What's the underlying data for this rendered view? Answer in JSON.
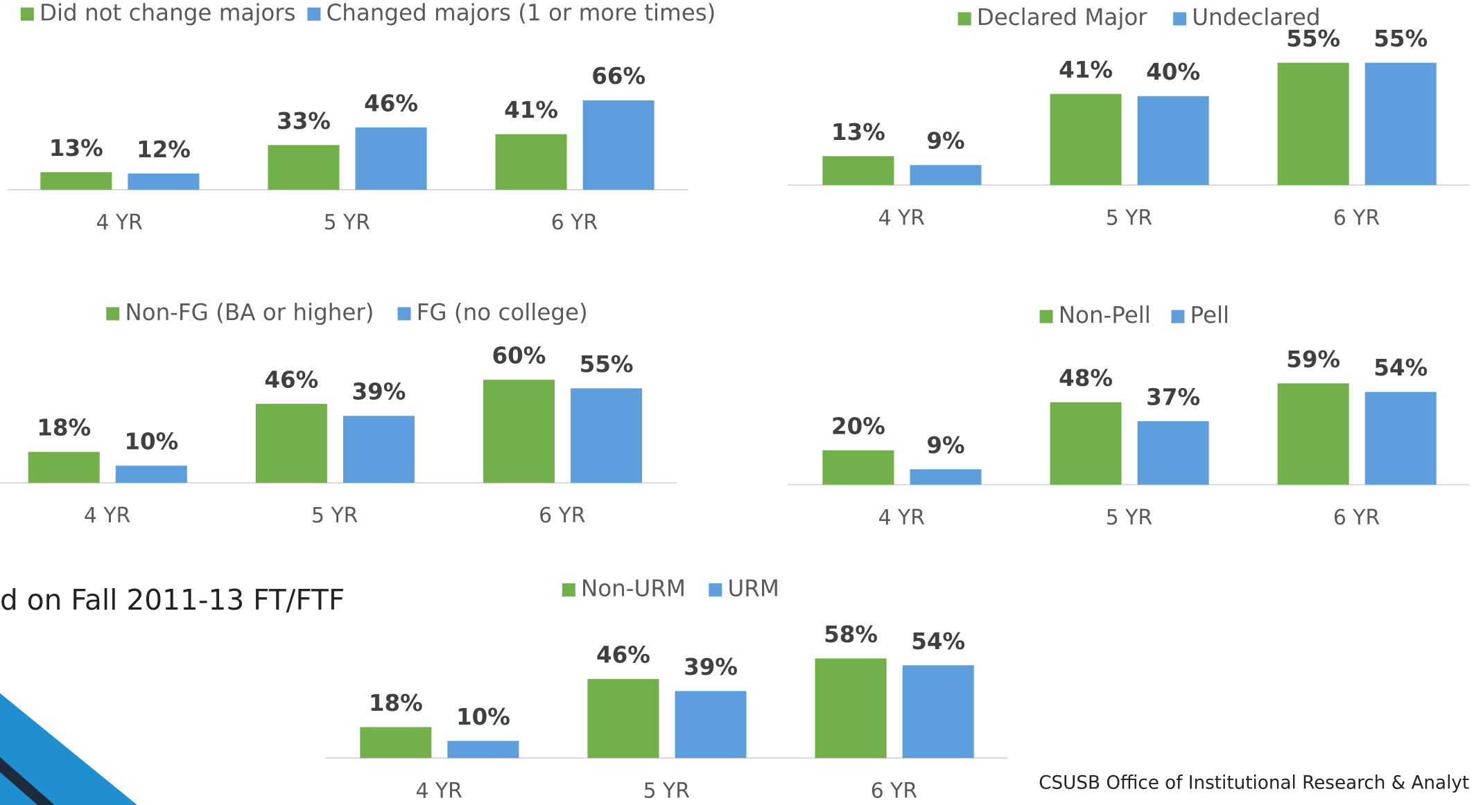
{
  "chart_data": [
    {
      "type": "bar",
      "categories": [
        "4 YR",
        "5 YR",
        "6 YR"
      ],
      "ylim": [
        0,
        70
      ],
      "series": [
        {
          "name": "Did not change majors",
          "color": "#72b04a",
          "values": [
            13,
            33,
            41
          ],
          "value_labels": [
            "13%",
            "33%",
            "41%"
          ]
        },
        {
          "name": "Changed majors (1 or more times)",
          "color": "#5d9fdc",
          "values": [
            12,
            46,
            66
          ],
          "value_labels": [
            "12%",
            "46%",
            "66%"
          ]
        }
      ]
    },
    {
      "type": "bar",
      "categories": [
        "4 YR",
        "5 YR",
        "6 YR"
      ],
      "ylim": [
        0,
        60
      ],
      "series": [
        {
          "name": "Declared Major",
          "color": "#72b04a",
          "values": [
            13,
            41,
            55
          ],
          "value_labels": [
            "13%",
            "41%",
            "55%"
          ]
        },
        {
          "name": "Undeclared",
          "color": "#5d9fdc",
          "values": [
            9,
            40,
            55
          ],
          "value_labels": [
            "9%",
            "40%",
            "55%"
          ]
        }
      ]
    },
    {
      "type": "bar",
      "categories": [
        "4 YR",
        "5 YR",
        "6 YR"
      ],
      "ylim": [
        0,
        70
      ],
      "series": [
        {
          "name": "Non-FG (BA or higher)",
          "color": "#72b04a",
          "values": [
            18,
            46,
            60
          ],
          "value_labels": [
            "18%",
            "46%",
            "60%"
          ]
        },
        {
          "name": "FG (no college)",
          "color": "#5d9fdc",
          "values": [
            10,
            39,
            55
          ],
          "value_labels": [
            "10%",
            "39%",
            "55%"
          ]
        }
      ]
    },
    {
      "type": "bar",
      "categories": [
        "4 YR",
        "5 YR",
        "6 YR"
      ],
      "ylim": [
        0,
        70
      ],
      "series": [
        {
          "name": "Non-Pell",
          "color": "#72b04a",
          "values": [
            20,
            48,
            59
          ],
          "value_labels": [
            "20%",
            "48%",
            "59%"
          ]
        },
        {
          "name": "Pell",
          "color": "#5d9fdc",
          "values": [
            9,
            37,
            54
          ],
          "value_labels": [
            "9%",
            "37%",
            "54%"
          ]
        }
      ]
    },
    {
      "type": "bar",
      "categories": [
        "4 YR",
        "5 YR",
        "6 YR"
      ],
      "ylim": [
        0,
        70
      ],
      "series": [
        {
          "name": "Non-URM",
          "color": "#72b04a",
          "values": [
            18,
            46,
            58
          ],
          "value_labels": [
            "18%",
            "46%",
            "58%"
          ]
        },
        {
          "name": "URM",
          "color": "#5d9fdc",
          "values": [
            10,
            39,
            54
          ],
          "value_labels": [
            "10%",
            "39%",
            "54%"
          ]
        }
      ]
    }
  ],
  "slide": {
    "subtitle": "d on Fall 2011-13 FT/FTF",
    "credit": "CSUSB Office of Institutional Research & Analyt"
  }
}
